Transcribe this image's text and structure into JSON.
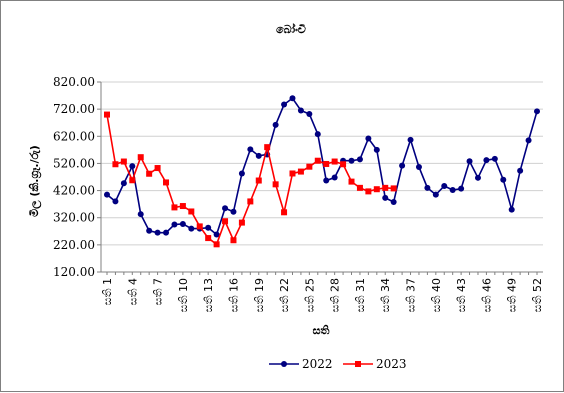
{
  "chart_data": {
    "type": "line",
    "title": "බෝංචි",
    "xlabel": "සති",
    "ylabel": "මිල (කි.ග්‍රෑ./රු)",
    "ylim": [
      120,
      820
    ],
    "yticks": [
      "120.00",
      "220.00",
      "320.00",
      "420.00",
      "520.00",
      "620.00",
      "720.00",
      "820.00"
    ],
    "week_prefix": "සති",
    "xtick_labels": [
      1,
      4,
      7,
      10,
      13,
      16,
      19,
      22,
      25,
      28,
      31,
      34,
      37,
      40,
      43,
      46,
      49,
      52
    ],
    "grid": "horizontal",
    "legend_position": "bottom",
    "series": [
      {
        "name": "2022",
        "color": "#000080",
        "marker": "circle",
        "x": [
          1,
          2,
          3,
          4,
          5,
          6,
          7,
          8,
          9,
          10,
          11,
          12,
          13,
          14,
          15,
          16,
          17,
          18,
          19,
          20,
          21,
          22,
          23,
          24,
          25,
          26,
          27,
          28,
          29,
          30,
          31,
          32,
          33,
          34,
          35,
          36,
          37,
          38,
          39,
          40,
          41,
          42,
          43,
          44,
          45,
          46,
          47,
          48,
          49,
          50,
          51,
          52
        ],
        "values": [
          405,
          380,
          447,
          510,
          333,
          272,
          265,
          265,
          295,
          297,
          280,
          280,
          283,
          258,
          355,
          342,
          483,
          572,
          548,
          553,
          662,
          737,
          760,
          715,
          702,
          628,
          457,
          468,
          530,
          530,
          535,
          612,
          570,
          393,
          378,
          512,
          607,
          507,
          430,
          405,
          437,
          422,
          427,
          528,
          467,
          532,
          537,
          460,
          350,
          493,
          605,
          712
        ]
      },
      {
        "name": "2023",
        "color": "#ff0000",
        "marker": "square",
        "x": [
          1,
          2,
          3,
          4,
          5,
          6,
          7,
          8,
          9,
          10,
          11,
          12,
          13,
          14,
          15,
          16,
          17,
          18,
          19,
          20,
          21,
          22,
          23,
          24,
          25,
          26,
          27,
          28,
          29,
          30,
          31,
          32,
          33,
          34,
          35
        ],
        "values": [
          700,
          517,
          527,
          458,
          543,
          482,
          503,
          450,
          358,
          363,
          343,
          288,
          245,
          222,
          307,
          237,
          302,
          380,
          457,
          580,
          443,
          340,
          483,
          490,
          508,
          530,
          518,
          527,
          517,
          453,
          430,
          417,
          425,
          430,
          428
        ]
      }
    ]
  }
}
